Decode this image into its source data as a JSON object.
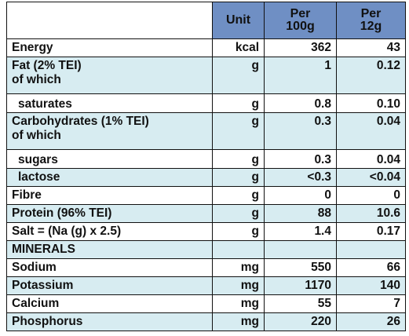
{
  "header": {
    "unit": "Unit",
    "per100_line1": "Per",
    "per100_line2": "100g",
    "per12_line1": "Per",
    "per12_line2": "12g"
  },
  "rows": [
    {
      "name": "Energy",
      "unit": "kcal",
      "per100": "362",
      "per12": "43"
    },
    {
      "name_line1": "Fat (2% TEI)",
      "name_line2": "of which",
      "unit": "g",
      "per100": "1",
      "per12": "0.12"
    },
    {
      "name": "saturates",
      "unit": "g",
      "per100": "0.8",
      "per12": "0.10"
    },
    {
      "name_line1": "Carbohydrates (1% TEI)",
      "name_line2": "of which",
      "unit": "g",
      "per100": "0.3",
      "per12": "0.04"
    },
    {
      "name": "sugars",
      "unit": "g",
      "per100": "0.3",
      "per12": "0.04"
    },
    {
      "name": "lactose",
      "unit": "g",
      "per100": "<0.3",
      "per12": "<0.04"
    },
    {
      "name": "Fibre",
      "unit": "g",
      "per100": "0",
      "per12": "0"
    },
    {
      "name": "Protein (96% TEI)",
      "unit": "g",
      "per100": "88",
      "per12": "10.6"
    },
    {
      "name": "Salt = (Na (g) x 2.5)",
      "unit": "g",
      "per100": "1.4",
      "per12": "0.17"
    },
    {
      "name": "MINERALS"
    },
    {
      "name": "Sodium",
      "unit": "mg",
      "per100": "550",
      "per12": "66"
    },
    {
      "name": "Potassium",
      "unit": "mg",
      "per100": "1170",
      "per12": "140"
    },
    {
      "name": "Calcium",
      "unit": "mg",
      "per100": "55",
      "per12": "7"
    },
    {
      "name": "Phosphorus",
      "unit": "mg",
      "per100": "220",
      "per12": "26"
    }
  ]
}
